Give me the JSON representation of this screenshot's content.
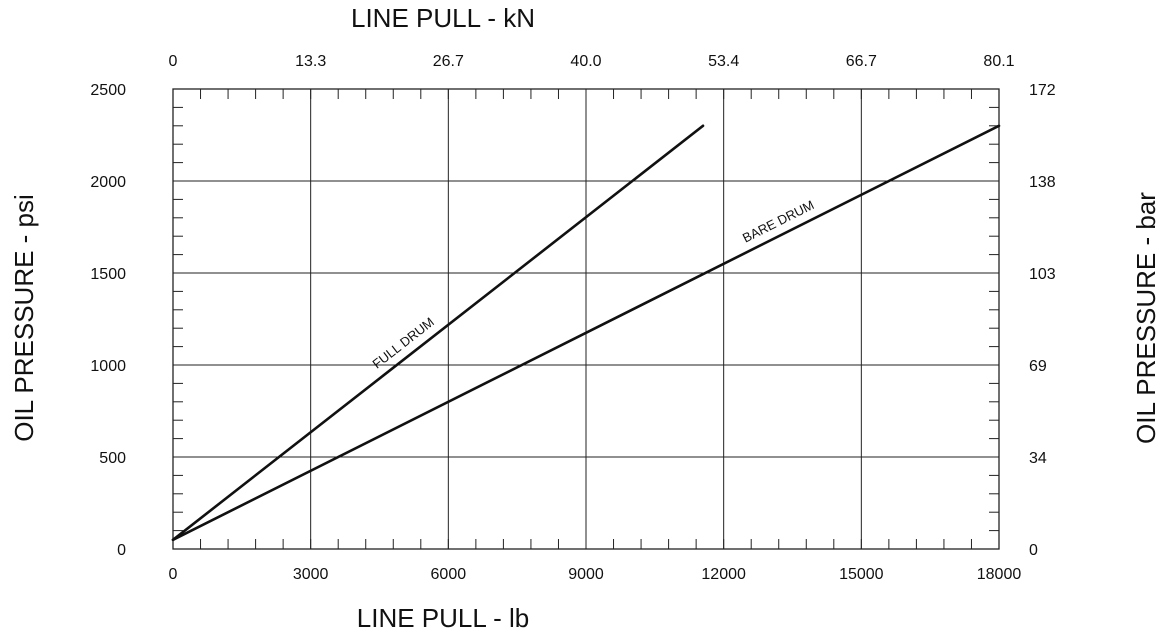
{
  "chart_data": {
    "type": "line",
    "title": "",
    "xlabel": "LINE  PULL - lb",
    "x2label": "LINE  PULL - kN",
    "ylabel": "OIL PRESSURE - psi",
    "y2label": "OIL PRESSURE - bar",
    "xlim": [
      0,
      18000
    ],
    "ylim": [
      0,
      2500
    ],
    "x_ticks": [
      0,
      3000,
      6000,
      9000,
      12000,
      15000,
      18000
    ],
    "x_tick_labels": [
      "0",
      "3000",
      "6000",
      "9000",
      "12000",
      "15000",
      "18000"
    ],
    "x2_tick_labels": [
      "0",
      "13.3",
      "26.7",
      "40.0",
      "53.4",
      "66.7",
      "80.1"
    ],
    "y_ticks": [
      0,
      500,
      1000,
      1500,
      2000,
      2500
    ],
    "y_tick_labels": [
      "0",
      "500",
      "1000",
      "1500",
      "2000",
      "2500"
    ],
    "y2_tick_labels": [
      "0",
      "34",
      "69",
      "103",
      "138",
      "172"
    ],
    "x_minor_step": 600,
    "y_minor_step": 100,
    "grid": true,
    "legend": "none",
    "series": [
      {
        "name": "FULL DRUM",
        "x": [
          0,
          11550
        ],
        "y": [
          50,
          2300
        ]
      },
      {
        "name": "BARE DRUM",
        "x": [
          0,
          18000
        ],
        "y": [
          50,
          2300
        ]
      }
    ]
  }
}
